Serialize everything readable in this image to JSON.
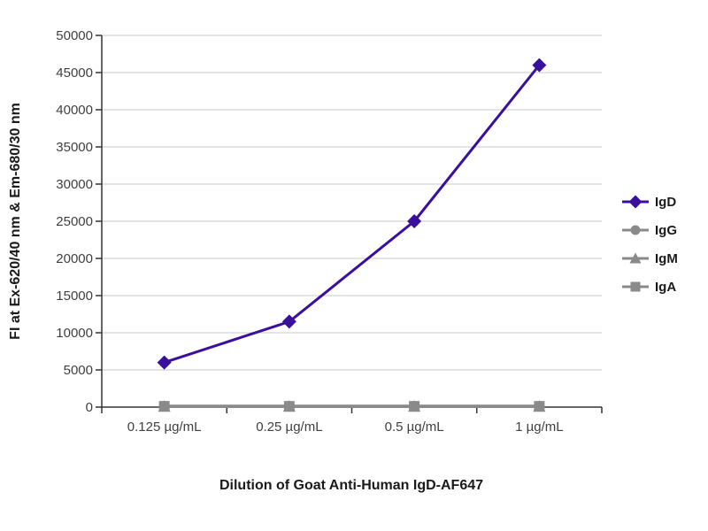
{
  "chart_data": {
    "type": "line",
    "categories": [
      "0.125 µg/mL",
      "0.25 µg/mL",
      "0.5 µg/mL",
      "1 µg/mL"
    ],
    "series": [
      {
        "name": "IgD",
        "values": [
          6000,
          11500,
          25000,
          46000
        ],
        "color": "#3A0F9E",
        "marker": "diamond"
      },
      {
        "name": "IgG",
        "values": [
          100,
          100,
          100,
          100
        ],
        "color": "#8A8A8A",
        "marker": "circle"
      },
      {
        "name": "IgM",
        "values": [
          100,
          100,
          100,
          100
        ],
        "color": "#8A8A8A",
        "marker": "triangle"
      },
      {
        "name": "IgA",
        "values": [
          100,
          100,
          100,
          100
        ],
        "color": "#8A8A8A",
        "marker": "square"
      }
    ],
    "title": "",
    "xlabel": "Dilution of Goat Anti-Human IgD-AF647",
    "ylabel": "FI at Ex-620/40 nm & Em-680/30 nm",
    "ylim": [
      0,
      50000
    ],
    "ytick_step": 5000,
    "grid": "horizontal",
    "legend_position": "right",
    "gridline_color": "#c8c8c8",
    "axis_color": "#333333"
  }
}
